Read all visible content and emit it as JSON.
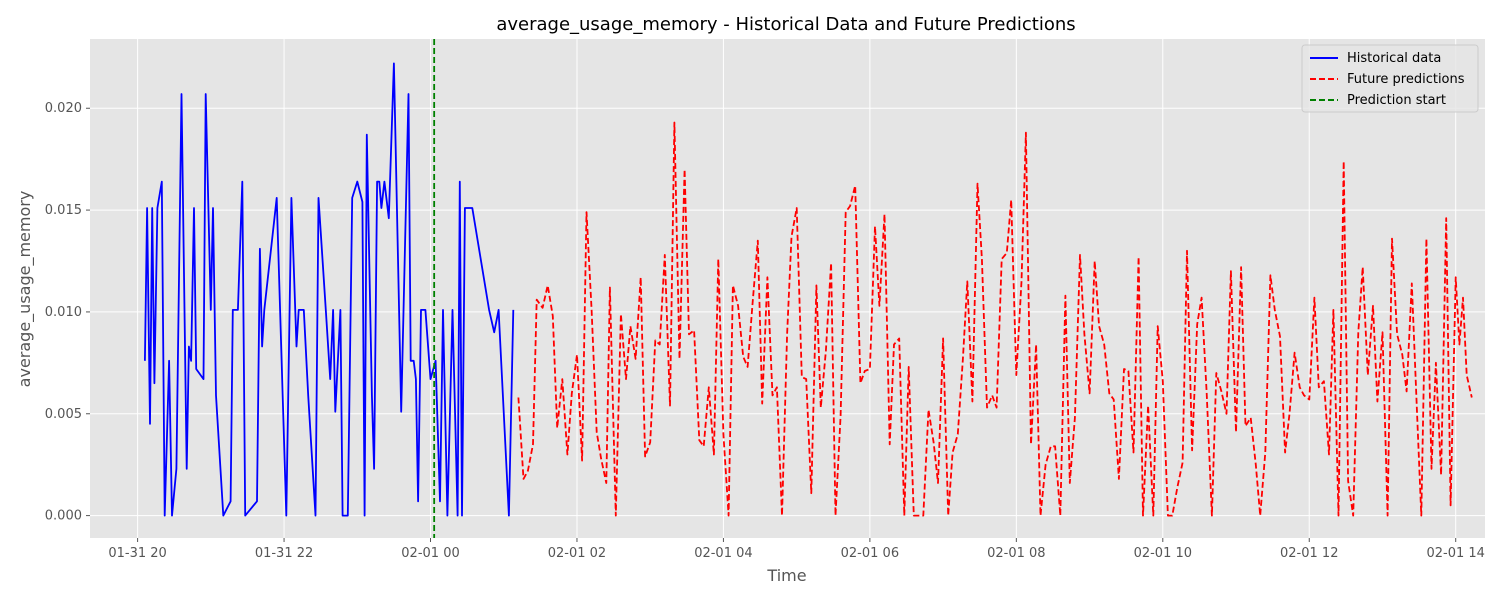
{
  "chart_data": {
    "type": "line",
    "title": "average_usage_memory - Historical Data and Future Predictions",
    "xlabel": "Time",
    "ylabel": "average_usage_memory",
    "x_ticks": [
      "01-31 20",
      "01-31 22",
      "02-01 00",
      "02-01 02",
      "02-01 04",
      "02-01 06",
      "02-01 08",
      "02-01 10",
      "02-01 12",
      "02-01 14"
    ],
    "y_ticks": [
      "0.000",
      "0.005",
      "0.010",
      "0.015",
      "0.020"
    ],
    "ylim": [
      -0.0011,
      0.0234
    ],
    "grid": true,
    "legend_position": "top-right",
    "x_unit": "time (hours)",
    "x_range": [
      -4.65,
      14.4
    ],
    "series": [
      {
        "name": "Historical data",
        "style": "solid",
        "color": "#0000ff",
        "points": [
          [
            -3.9,
            0.0076
          ],
          [
            -3.87,
            0.0151
          ],
          [
            -3.83,
            0.0045
          ],
          [
            -3.8,
            0.0151
          ],
          [
            -3.77,
            0.0065
          ],
          [
            -3.73,
            0.0151
          ],
          [
            -3.67,
            0.0164
          ],
          [
            -3.63,
            0.0
          ],
          [
            -3.57,
            0.0076
          ],
          [
            -3.53,
            0.0
          ],
          [
            -3.47,
            0.0023
          ],
          [
            -3.4,
            0.0207
          ],
          [
            -3.33,
            0.0023
          ],
          [
            -3.3,
            0.0083
          ],
          [
            -3.27,
            0.0076
          ],
          [
            -3.23,
            0.0151
          ],
          [
            -3.2,
            0.0072
          ],
          [
            -3.1,
            0.0067
          ],
          [
            -3.07,
            0.0207
          ],
          [
            -3.0,
            0.0101
          ],
          [
            -2.97,
            0.0151
          ],
          [
            -2.93,
            0.0059
          ],
          [
            -2.83,
            0.0
          ],
          [
            -2.73,
            0.0007
          ],
          [
            -2.7,
            0.0101
          ],
          [
            -2.63,
            0.0101
          ],
          [
            -2.57,
            0.0164
          ],
          [
            -2.53,
            0.0
          ],
          [
            -2.37,
            0.0007
          ],
          [
            -2.33,
            0.0131
          ],
          [
            -2.3,
            0.0083
          ],
          [
            -2.27,
            0.0101
          ],
          [
            -2.1,
            0.0156
          ],
          [
            -1.97,
            0.0
          ],
          [
            -1.9,
            0.0156
          ],
          [
            -1.83,
            0.0083
          ],
          [
            -1.8,
            0.0101
          ],
          [
            -1.73,
            0.0101
          ],
          [
            -1.67,
            0.0059
          ],
          [
            -1.57,
            0.0
          ],
          [
            -1.53,
            0.0156
          ],
          [
            -1.43,
            0.0101
          ],
          [
            -1.37,
            0.0067
          ],
          [
            -1.33,
            0.0101
          ],
          [
            -1.3,
            0.0051
          ],
          [
            -1.23,
            0.0101
          ],
          [
            -1.2,
            0.0
          ],
          [
            -1.13,
            0.0
          ],
          [
            -1.07,
            0.0156
          ],
          [
            -1.0,
            0.0164
          ],
          [
            -0.93,
            0.0154
          ],
          [
            -0.9,
            0.0
          ],
          [
            -0.87,
            0.0187
          ],
          [
            -0.8,
            0.0059
          ],
          [
            -0.77,
            0.0023
          ],
          [
            -0.73,
            0.0164
          ],
          [
            -0.7,
            0.0164
          ],
          [
            -0.67,
            0.0151
          ],
          [
            -0.63,
            0.0164
          ],
          [
            -0.57,
            0.0146
          ],
          [
            -0.5,
            0.0222
          ],
          [
            -0.4,
            0.0051
          ],
          [
            -0.3,
            0.0207
          ],
          [
            -0.27,
            0.0076
          ],
          [
            -0.23,
            0.0076
          ],
          [
            -0.2,
            0.0067
          ],
          [
            -0.17,
            0.0007
          ],
          [
            -0.13,
            0.0101
          ],
          [
            -0.07,
            0.0101
          ],
          [
            0.0,
            0.0067
          ],
          [
            0.07,
            0.0076
          ],
          [
            0.13,
            0.0007
          ],
          [
            0.17,
            0.0101
          ],
          [
            0.23,
            0.0
          ],
          [
            0.3,
            0.0101
          ],
          [
            0.37,
            0.0
          ],
          [
            0.4,
            0.0164
          ],
          [
            0.43,
            0.0
          ],
          [
            0.47,
            0.0151
          ],
          [
            0.57,
            0.0151
          ],
          [
            0.8,
            0.0101
          ],
          [
            0.87,
            0.009
          ],
          [
            0.93,
            0.0101
          ],
          [
            1.07,
            0.0
          ],
          [
            1.13,
            0.0101
          ]
        ]
      },
      {
        "name": "Future predictions",
        "style": "dashed",
        "color": "#ff0000",
        "points": [
          [
            1.2,
            0.0058
          ],
          [
            1.27,
            0.0018
          ],
          [
            1.33,
            0.0022
          ],
          [
            1.4,
            0.0035
          ],
          [
            1.45,
            0.0106
          ],
          [
            1.53,
            0.0102
          ],
          [
            1.6,
            0.0113
          ],
          [
            1.67,
            0.0098
          ],
          [
            1.73,
            0.0043
          ],
          [
            1.8,
            0.0067
          ],
          [
            1.87,
            0.003
          ],
          [
            1.93,
            0.006
          ],
          [
            2.0,
            0.0079
          ],
          [
            2.07,
            0.0027
          ],
          [
            2.13,
            0.0149
          ],
          [
            2.2,
            0.0101
          ],
          [
            2.27,
            0.0041
          ],
          [
            2.33,
            0.0028
          ],
          [
            2.4,
            0.0016
          ],
          [
            2.45,
            0.0112
          ],
          [
            2.53,
            0.0
          ],
          [
            2.6,
            0.0099
          ],
          [
            2.67,
            0.0067
          ],
          [
            2.73,
            0.0093
          ],
          [
            2.8,
            0.0077
          ],
          [
            2.87,
            0.0117
          ],
          [
            2.93,
            0.0029
          ],
          [
            3.0,
            0.0036
          ],
          [
            3.07,
            0.0086
          ],
          [
            3.13,
            0.0084
          ],
          [
            3.2,
            0.0128
          ],
          [
            3.27,
            0.0054
          ],
          [
            3.33,
            0.0193
          ],
          [
            3.4,
            0.0077
          ],
          [
            3.47,
            0.017
          ],
          [
            3.53,
            0.0089
          ],
          [
            3.6,
            0.0091
          ],
          [
            3.67,
            0.0037
          ],
          [
            3.73,
            0.0034
          ],
          [
            3.8,
            0.0063
          ],
          [
            3.87,
            0.003
          ],
          [
            3.93,
            0.0126
          ],
          [
            4.0,
            0.004
          ],
          [
            4.07,
            0.0
          ],
          [
            4.13,
            0.0113
          ],
          [
            4.2,
            0.0103
          ],
          [
            4.27,
            0.0078
          ],
          [
            4.33,
            0.0073
          ],
          [
            4.4,
            0.0105
          ],
          [
            4.47,
            0.0135
          ],
          [
            4.53,
            0.0055
          ],
          [
            4.6,
            0.0117
          ],
          [
            4.67,
            0.0059
          ],
          [
            4.73,
            0.0063
          ],
          [
            4.8,
            0.0
          ],
          [
            4.87,
            0.0089
          ],
          [
            4.93,
            0.0137
          ],
          [
            5.0,
            0.0151
          ],
          [
            5.07,
            0.0068
          ],
          [
            5.13,
            0.0067
          ],
          [
            5.2,
            0.0011
          ],
          [
            5.27,
            0.0113
          ],
          [
            5.33,
            0.0053
          ],
          [
            5.4,
            0.0081
          ],
          [
            5.47,
            0.0124
          ],
          [
            5.53,
            0.0
          ],
          [
            5.6,
            0.0049
          ],
          [
            5.67,
            0.0149
          ],
          [
            5.73,
            0.0152
          ],
          [
            5.8,
            0.0162
          ],
          [
            5.87,
            0.0065
          ],
          [
            5.93,
            0.0071
          ],
          [
            6.0,
            0.0072
          ],
          [
            6.07,
            0.0142
          ],
          [
            6.13,
            0.0103
          ],
          [
            6.2,
            0.0148
          ],
          [
            6.27,
            0.0035
          ],
          [
            6.33,
            0.0084
          ],
          [
            6.4,
            0.0087
          ],
          [
            6.47,
            0.0
          ],
          [
            6.53,
            0.0073
          ],
          [
            6.6,
            0.0
          ],
          [
            6.67,
            0.0
          ],
          [
            6.73,
            0.0
          ],
          [
            6.8,
            0.0052
          ],
          [
            6.87,
            0.0036
          ],
          [
            6.93,
            0.0016
          ],
          [
            7.0,
            0.0087
          ],
          [
            7.07,
            0.0
          ],
          [
            7.13,
            0.0031
          ],
          [
            7.2,
            0.004
          ],
          [
            7.27,
            0.0077
          ],
          [
            7.33,
            0.0115
          ],
          [
            7.4,
            0.0056
          ],
          [
            7.47,
            0.0163
          ],
          [
            7.53,
            0.0126
          ],
          [
            7.6,
            0.0053
          ],
          [
            7.67,
            0.0059
          ],
          [
            7.73,
            0.0053
          ],
          [
            7.8,
            0.0126
          ],
          [
            7.87,
            0.0129
          ],
          [
            7.93,
            0.0155
          ],
          [
            8.0,
            0.0069
          ],
          [
            8.07,
            0.0115
          ],
          [
            8.13,
            0.0188
          ],
          [
            8.2,
            0.0035
          ],
          [
            8.27,
            0.0084
          ],
          [
            8.33,
            0.0
          ],
          [
            8.4,
            0.0025
          ],
          [
            8.47,
            0.0034
          ],
          [
            8.53,
            0.0034
          ],
          [
            8.6,
            0.0
          ],
          [
            8.67,
            0.0108
          ],
          [
            8.73,
            0.0016
          ],
          [
            8.8,
            0.0048
          ],
          [
            8.87,
            0.0128
          ],
          [
            8.93,
            0.0089
          ],
          [
            9.0,
            0.006
          ],
          [
            9.07,
            0.0125
          ],
          [
            9.13,
            0.0093
          ],
          [
            9.2,
            0.0084
          ],
          [
            9.27,
            0.006
          ],
          [
            9.33,
            0.0057
          ],
          [
            9.4,
            0.0018
          ],
          [
            9.47,
            0.0072
          ],
          [
            9.53,
            0.0071
          ],
          [
            9.6,
            0.0031
          ],
          [
            9.67,
            0.0127
          ],
          [
            9.73,
            0.0
          ],
          [
            9.8,
            0.0054
          ],
          [
            9.87,
            0.0
          ],
          [
            9.93,
            0.0093
          ],
          [
            10.0,
            0.0066
          ],
          [
            10.07,
            0.0
          ],
          [
            10.13,
            0.0
          ],
          [
            10.2,
            0.0014
          ],
          [
            10.27,
            0.0026
          ],
          [
            10.33,
            0.013
          ],
          [
            10.4,
            0.0032
          ],
          [
            10.47,
            0.0094
          ],
          [
            10.53,
            0.0107
          ],
          [
            10.6,
            0.006
          ],
          [
            10.67,
            0.0
          ],
          [
            10.73,
            0.007
          ],
          [
            10.8,
            0.0061
          ],
          [
            10.87,
            0.005
          ],
          [
            10.93,
            0.012
          ],
          [
            11.0,
            0.0041
          ],
          [
            11.07,
            0.0122
          ],
          [
            11.13,
            0.0044
          ],
          [
            11.2,
            0.0048
          ],
          [
            11.27,
            0.0025
          ],
          [
            11.33,
            0.0
          ],
          [
            11.4,
            0.0031
          ],
          [
            11.47,
            0.0118
          ],
          [
            11.53,
            0.0101
          ],
          [
            11.6,
            0.0088
          ],
          [
            11.67,
            0.0031
          ],
          [
            11.73,
            0.005
          ],
          [
            11.8,
            0.008
          ],
          [
            11.87,
            0.0063
          ],
          [
            11.93,
            0.0059
          ],
          [
            12.0,
            0.0057
          ],
          [
            12.07,
            0.0107
          ],
          [
            12.13,
            0.0063
          ],
          [
            12.2,
            0.0066
          ],
          [
            12.27,
            0.003
          ],
          [
            12.33,
            0.0101
          ],
          [
            12.4,
            0.0
          ],
          [
            12.47,
            0.0174
          ],
          [
            12.53,
            0.0017
          ],
          [
            12.6,
            0.0
          ],
          [
            12.67,
            0.009
          ],
          [
            12.73,
            0.0122
          ],
          [
            12.8,
            0.0069
          ],
          [
            12.87,
            0.0103
          ],
          [
            12.93,
            0.0056
          ],
          [
            13.0,
            0.009
          ],
          [
            13.07,
            0.0
          ],
          [
            13.13,
            0.0136
          ],
          [
            13.2,
            0.0089
          ],
          [
            13.27,
            0.0079
          ],
          [
            13.33,
            0.0061
          ],
          [
            13.4,
            0.0114
          ],
          [
            13.47,
            0.0052
          ],
          [
            13.53,
            0.0
          ],
          [
            13.6,
            0.0136
          ],
          [
            13.67,
            0.0023
          ],
          [
            13.73,
            0.0075
          ],
          [
            13.8,
            0.002
          ],
          [
            13.87,
            0.0146
          ],
          [
            13.93,
            0.0005
          ],
          [
            14.0,
            0.0117
          ],
          [
            14.05,
            0.0084
          ],
          [
            14.1,
            0.0107
          ],
          [
            14.15,
            0.0069
          ],
          [
            14.22,
            0.0058
          ]
        ]
      },
      {
        "name": "Prediction start",
        "style": "dashed",
        "color": "#008000",
        "x": 0.05
      }
    ]
  }
}
